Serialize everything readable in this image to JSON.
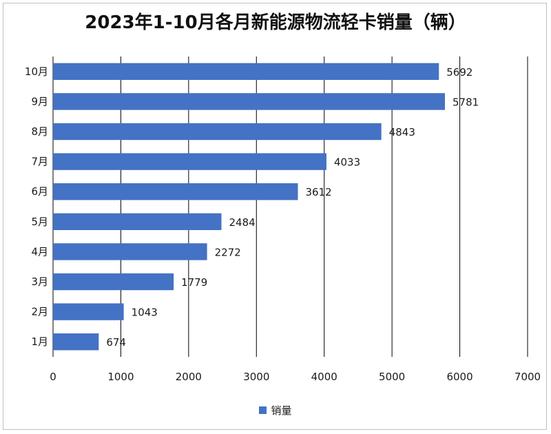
{
  "chart_data": {
    "type": "bar",
    "orientation": "horizontal",
    "title": "2023年1-10月各月新能源物流轻卡销量（辆）",
    "categories": [
      "10月",
      "9月",
      "8月",
      "7月",
      "6月",
      "5月",
      "4月",
      "3月",
      "2月",
      "1月"
    ],
    "series": [
      {
        "name": "销量",
        "values": [
          5692,
          5781,
          4843,
          4033,
          3612,
          2484,
          2272,
          1779,
          1043,
          674
        ]
      }
    ],
    "xlim": [
      0,
      7000
    ],
    "xticks": [
      "0",
      "1000",
      "2000",
      "3000",
      "4000",
      "5000",
      "6000",
      "7000"
    ],
    "grid": true,
    "legend_position": "bottom",
    "colors": {
      "bar": "#4472c4",
      "grid": "#000000"
    }
  }
}
